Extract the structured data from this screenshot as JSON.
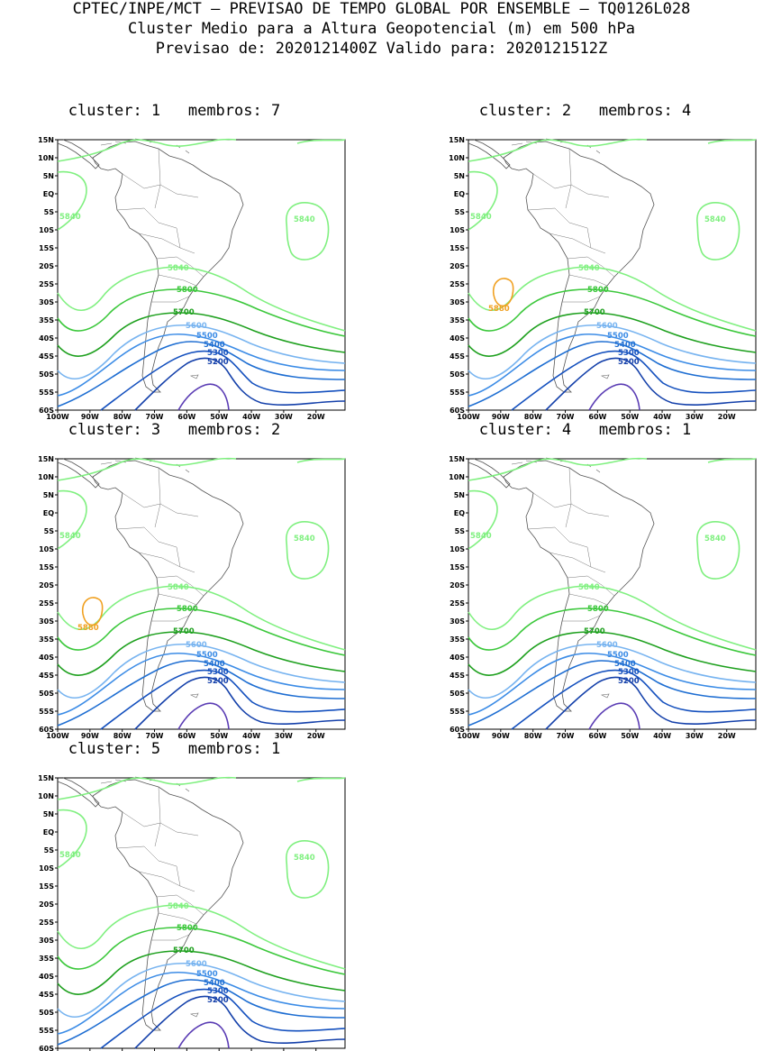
{
  "header": {
    "line1": "CPTEC/INPE/MCT – PREVISAO DE TEMPO GLOBAL POR ENSEMBLE – TQ0126L028",
    "line2": "Cluster Medio para a Altura Geopotencial (m) em 500 hPa",
    "line3": "Previsao de: 2020121400Z   Valido para: 2020121512Z"
  },
  "axes": {
    "lat_labels": [
      "15N",
      "10N",
      "5N",
      "EQ",
      "5S",
      "10S",
      "15S",
      "20S",
      "25S",
      "30S",
      "35S",
      "40S",
      "45S",
      "50S",
      "55S",
      "60S"
    ],
    "lon_labels": [
      "100W",
      "90W",
      "80W",
      "70W",
      "60W",
      "50W",
      "40W",
      "30W",
      "20W"
    ],
    "lat_range": [
      -60,
      15
    ],
    "lon_range": [
      -100,
      -11
    ]
  },
  "colors": {
    "c5880": "#f0a020",
    "c5840": "#80f080",
    "c5800": "#3cc83c",
    "c5700": "#1ea01e",
    "c5600": "#78b4f0",
    "c5500": "#3c8ce6",
    "c5400": "#1e6ed2",
    "c5300": "#1450be",
    "c5200": "#1440aa",
    "c5100": "#5a3cb4",
    "coast": "#000000"
  },
  "contour_labels": {
    "l5880": "5880",
    "l5840": "5840",
    "l5800": "5800",
    "l5700": "5700",
    "l5600": "5600",
    "l5500": "5500",
    "l5400": "5400",
    "l5300": "5300",
    "l5200": "5200"
  },
  "panels": [
    {
      "title": "cluster: 1   membros: 7",
      "high_5880": false
    },
    {
      "title": "cluster: 2   membros: 4",
      "high_5880": true
    },
    {
      "title": "cluster: 3   membros: 2",
      "high_5880": true
    },
    {
      "title": "cluster: 4   membros: 1",
      "high_5880": false
    },
    {
      "title": "cluster: 5   membros: 1",
      "high_5880": false
    }
  ]
}
